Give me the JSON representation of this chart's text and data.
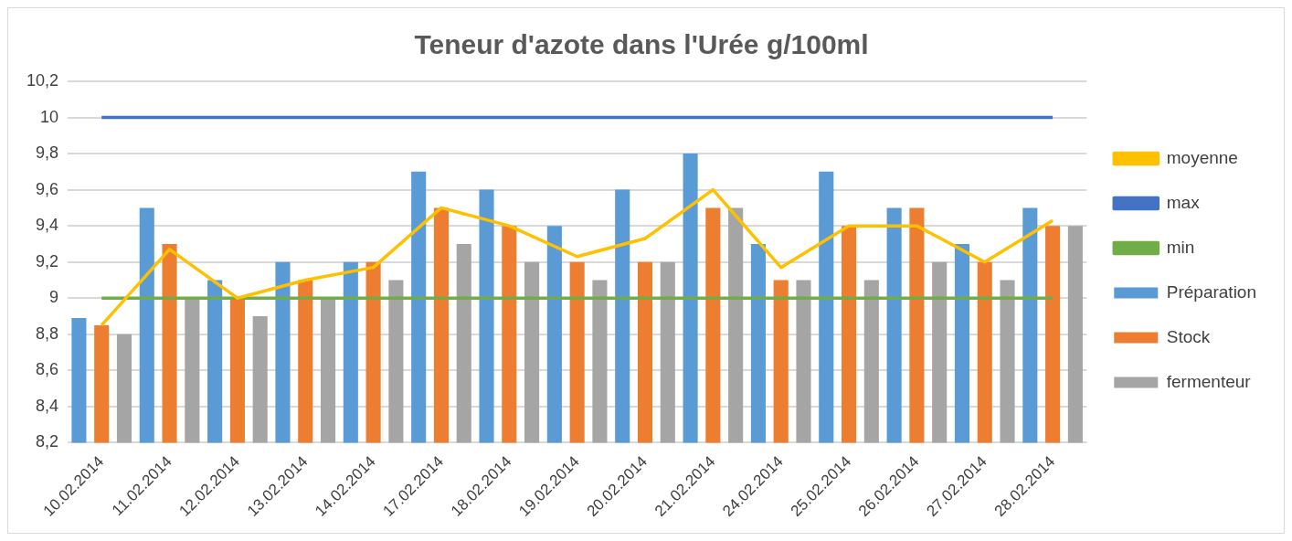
{
  "chart_data": {
    "type": "bar",
    "title": "Teneur d'azote dans l'Urée g/100ml",
    "categories": [
      "10.02.2014",
      "11.02.2014",
      "12.02.2014",
      "13.02.2014",
      "14.02.2014",
      "17.02.2014",
      "18.02.2014",
      "19.02.2014",
      "20.02.2014",
      "21.02.2014",
      "24.02.2014",
      "25.02.2014",
      "26.02.2014",
      "27.02.2014",
      "28.02.2014"
    ],
    "series": [
      {
        "name": "Préparation",
        "color": "#5b9bd5",
        "values": [
          8.89,
          9.5,
          9.1,
          9.2,
          9.2,
          9.7,
          9.6,
          9.4,
          9.6,
          9.8,
          9.3,
          9.7,
          9.5,
          9.3,
          9.5
        ]
      },
      {
        "name": "Stock",
        "color": "#ed7d31",
        "values": [
          8.85,
          9.3,
          9.0,
          9.1,
          9.2,
          9.5,
          9.4,
          9.2,
          9.2,
          9.5,
          9.1,
          9.4,
          9.5,
          9.2,
          9.4
        ]
      },
      {
        "name": "fermenteur",
        "color": "#a5a5a5",
        "values": [
          8.8,
          9.0,
          8.9,
          9.0,
          9.1,
          9.3,
          9.2,
          9.1,
          9.2,
          9.5,
          9.1,
          9.1,
          9.2,
          9.1,
          9.4
        ]
      },
      {
        "name": "moyenne",
        "type": "line",
        "color": "#ffc000",
        "values": [
          8.85,
          9.27,
          9.0,
          9.1,
          9.17,
          9.5,
          9.4,
          9.23,
          9.33,
          9.6,
          9.17,
          9.4,
          9.4,
          9.2,
          9.43
        ]
      },
      {
        "name": "max",
        "type": "line",
        "color": "#4472c4",
        "values": [
          10,
          10,
          10,
          10,
          10,
          10,
          10,
          10,
          10,
          10,
          10,
          10,
          10,
          10,
          10
        ]
      },
      {
        "name": "min",
        "type": "line",
        "color": "#70ad47",
        "values": [
          9,
          9,
          9,
          9,
          9,
          9,
          9,
          9,
          9,
          9,
          9,
          9,
          9,
          9,
          9
        ]
      }
    ],
    "ylim": [
      8.2,
      10.2
    ],
    "yticks": [
      {
        "value": 8.2,
        "label": "8,2"
      },
      {
        "value": 8.4,
        "label": "8,4"
      },
      {
        "value": 8.6,
        "label": "8,6"
      },
      {
        "value": 8.8,
        "label": "8,8"
      },
      9,
      {
        "value": 9.2,
        "label": "9,2"
      },
      {
        "value": 9.4,
        "label": "9,4"
      },
      {
        "value": 9.6,
        "label": "9,6"
      },
      {
        "value": 9.8,
        "label": "9,8"
      },
      10,
      {
        "value": 10.2,
        "label": "10,2"
      }
    ],
    "grid": "y",
    "legend": "right",
    "marker": "none"
  }
}
